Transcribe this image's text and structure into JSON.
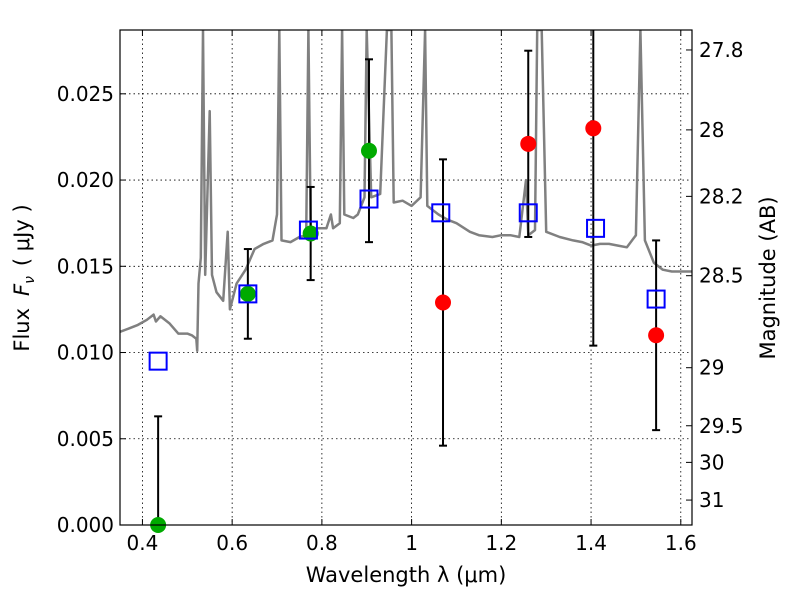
{
  "chart_data": {
    "type": "scatter",
    "xlabel": "Wavelength  λ (μm)",
    "ylabel_main": "Flux",
    "ylabel_symbol": "F",
    "ylabel_subscript": "ν",
    "ylabel_unit": "( μJy )",
    "ylabel_right": "Magnitude (AB)",
    "xlim": [
      0.35,
      1.625
    ],
    "ylim": [
      0.0,
      0.0287
    ],
    "grid": true,
    "x_ticks": [
      {
        "value": 0.4,
        "label": "0.4"
      },
      {
        "value": 0.6,
        "label": "0.6"
      },
      {
        "value": 0.8,
        "label": "0.8"
      },
      {
        "value": 1.0,
        "label": "1"
      },
      {
        "value": 1.2,
        "label": "1.2"
      },
      {
        "value": 1.4,
        "label": "1.4"
      },
      {
        "value": 1.6,
        "label": "1.6"
      }
    ],
    "y_ticks": [
      {
        "value": 0.0,
        "label": "0.000"
      },
      {
        "value": 0.005,
        "label": "0.005"
      },
      {
        "value": 0.01,
        "label": "0.010"
      },
      {
        "value": 0.015,
        "label": "0.015"
      },
      {
        "value": 0.02,
        "label": "0.020"
      },
      {
        "value": 0.025,
        "label": "0.025"
      }
    ],
    "y2_ticks": [
      {
        "mag": 27.8,
        "label": "27.8"
      },
      {
        "mag": 28,
        "label": "28"
      },
      {
        "mag": 28.2,
        "label": "28.2"
      },
      {
        "mag": 28.5,
        "label": "28.5"
      },
      {
        "mag": 29,
        "label": "29"
      },
      {
        "mag": 29.5,
        "label": "29.5"
      },
      {
        "mag": 30,
        "label": "30"
      },
      {
        "mag": 31,
        "label": "31"
      }
    ],
    "model_spectrum": {
      "color": "#808080",
      "points": [
        [
          0.35,
          0.0112
        ],
        [
          0.37,
          0.0114
        ],
        [
          0.39,
          0.0116
        ],
        [
          0.41,
          0.0119
        ],
        [
          0.425,
          0.0122
        ],
        [
          0.43,
          0.0118
        ],
        [
          0.44,
          0.0121
        ],
        [
          0.46,
          0.0117
        ],
        [
          0.48,
          0.0111
        ],
        [
          0.5,
          0.0111
        ],
        [
          0.51,
          0.011
        ],
        [
          0.52,
          0.0108
        ],
        [
          0.522,
          0.0101
        ],
        [
          0.525,
          0.014
        ],
        [
          0.53,
          0.0155
        ],
        [
          0.535,
          0.0287
        ],
        [
          0.54,
          0.0145
        ],
        [
          0.55,
          0.024
        ],
        [
          0.555,
          0.0145
        ],
        [
          0.565,
          0.0135
        ],
        [
          0.58,
          0.013
        ],
        [
          0.59,
          0.017
        ],
        [
          0.595,
          0.0125
        ],
        [
          0.61,
          0.014
        ],
        [
          0.63,
          0.0148
        ],
        [
          0.65,
          0.016
        ],
        [
          0.67,
          0.0163
        ],
        [
          0.69,
          0.0165
        ],
        [
          0.7,
          0.018
        ],
        [
          0.705,
          0.0287
        ],
        [
          0.71,
          0.0165
        ],
        [
          0.73,
          0.0164
        ],
        [
          0.75,
          0.0167
        ],
        [
          0.765,
          0.0168
        ],
        [
          0.77,
          0.0287
        ],
        [
          0.775,
          0.017
        ],
        [
          0.79,
          0.0172
        ],
        [
          0.81,
          0.0172
        ],
        [
          0.82,
          0.018
        ],
        [
          0.825,
          0.0172
        ],
        [
          0.84,
          0.0175
        ],
        [
          0.845,
          0.0287
        ],
        [
          0.85,
          0.018
        ],
        [
          0.87,
          0.0178
        ],
        [
          0.88,
          0.018
        ],
        [
          0.895,
          0.019
        ],
        [
          0.9,
          0.0287
        ],
        [
          0.91,
          0.019
        ],
        [
          0.93,
          0.0192
        ],
        [
          0.945,
          0.0287
        ],
        [
          0.955,
          0.0287
        ],
        [
          0.96,
          0.0187
        ],
        [
          0.98,
          0.0188
        ],
        [
          1.0,
          0.0185
        ],
        [
          1.02,
          0.019
        ],
        [
          1.03,
          0.0287
        ],
        [
          1.035,
          0.0185
        ],
        [
          1.06,
          0.018
        ],
        [
          1.08,
          0.0177
        ],
        [
          1.1,
          0.0175
        ],
        [
          1.13,
          0.017
        ],
        [
          1.15,
          0.0168
        ],
        [
          1.18,
          0.0167
        ],
        [
          1.2,
          0.0168
        ],
        [
          1.22,
          0.0168
        ],
        [
          1.24,
          0.0167
        ],
        [
          1.255,
          0.02
        ],
        [
          1.26,
          0.0168
        ],
        [
          1.275,
          0.0171
        ],
        [
          1.28,
          0.0287
        ],
        [
          1.29,
          0.0287
        ],
        [
          1.3,
          0.017
        ],
        [
          1.33,
          0.0167
        ],
        [
          1.36,
          0.0165
        ],
        [
          1.38,
          0.0164
        ],
        [
          1.4,
          0.0162
        ],
        [
          1.42,
          0.0163
        ],
        [
          1.44,
          0.0163
        ],
        [
          1.46,
          0.0162
        ],
        [
          1.48,
          0.0161
        ],
        [
          1.5,
          0.0168
        ],
        [
          1.51,
          0.0287
        ],
        [
          1.52,
          0.0165
        ],
        [
          1.54,
          0.0152
        ],
        [
          1.56,
          0.0148
        ],
        [
          1.58,
          0.0147
        ],
        [
          1.6,
          0.0147
        ],
        [
          1.625,
          0.0147
        ]
      ]
    },
    "observed": [
      {
        "x": 0.435,
        "y": 0.0,
        "yerr": 0.0063,
        "color": "#00aa00"
      },
      {
        "x": 0.635,
        "y": 0.0134,
        "yerr": 0.0026,
        "color": "#00aa00"
      },
      {
        "x": 0.775,
        "y": 0.0169,
        "yerr": 0.0027,
        "color": "#00aa00"
      },
      {
        "x": 0.905,
        "y": 0.0217,
        "yerr": 0.0053,
        "color": "#00aa00"
      },
      {
        "x": 1.07,
        "y": 0.0129,
        "yerr": 0.0083,
        "color": "#ff0000"
      },
      {
        "x": 1.26,
        "y": 0.0221,
        "yerr": 0.0054,
        "color": "#ff0000"
      },
      {
        "x": 1.405,
        "y": 0.023,
        "yerr": 0.0126,
        "color": "#ff0000"
      },
      {
        "x": 1.545,
        "y": 0.011,
        "yerr": 0.0055,
        "color": "#ff0000"
      }
    ],
    "model_photometry": {
      "color": "#0000ff",
      "points": [
        [
          0.435,
          0.0095
        ],
        [
          0.635,
          0.0134
        ],
        [
          0.77,
          0.0171
        ],
        [
          0.905,
          0.0189
        ],
        [
          1.065,
          0.0181
        ],
        [
          1.26,
          0.0181
        ],
        [
          1.41,
          0.0172
        ],
        [
          1.545,
          0.0131
        ]
      ]
    }
  }
}
